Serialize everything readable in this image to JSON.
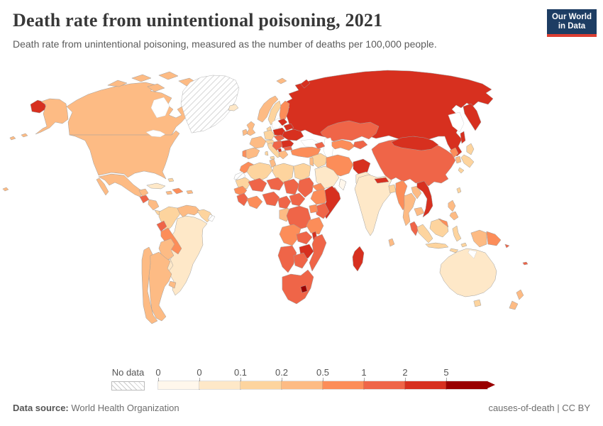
{
  "header": {
    "title": "Death rate from unintentional poisoning, 2021",
    "subtitle": "Death rate from unintentional poisoning, measured as the number of deaths per 100,000 people.",
    "logo": {
      "line1": "Our World",
      "line2": "in Data",
      "bg": "#1d3d63",
      "bar": "#dc3e32"
    }
  },
  "legend": {
    "no_data_label": "No data",
    "ticks": [
      "0",
      "0",
      "0.1",
      "0.2",
      "0.5",
      "1",
      "2",
      "5"
    ],
    "bin_colors": [
      "#fff7ec",
      "#fee8c8",
      "#fdd49e",
      "#fdbb84",
      "#fc8d59",
      "#ef6548",
      "#d7301f",
      "#990000"
    ]
  },
  "footer": {
    "source_label": "Data source:",
    "source_value": "World Health Organization",
    "license": "causes-of-death | CC BY"
  },
  "chart_data": {
    "type": "choropleth-map",
    "title": "Death rate from unintentional poisoning, 2021",
    "year": "2021",
    "unit": "deaths per 100,000 people",
    "bins": [
      {
        "range": "0",
        "color": "#fff7ec"
      },
      {
        "range": "0–0.1",
        "color": "#fee8c8"
      },
      {
        "range": "0.1–0.2",
        "color": "#fdd49e"
      },
      {
        "range": "0.2–0.5",
        "color": "#fdbb84"
      },
      {
        "range": "0.5–1",
        "color": "#fc8d59"
      },
      {
        "range": "1–2",
        "color": "#ef6548"
      },
      {
        "range": "2–5",
        "color": "#d7301f"
      },
      {
        "range": "5+",
        "color": "#990000"
      }
    ],
    "regions": {
      "russia": [
        "Russia",
        "2–5"
      ],
      "russia-west": [
        "Russia (Chukotka)",
        "2–5"
      ],
      "kamchatka": [
        "Russia (Kamchatka)",
        "2–5"
      ],
      "sakhalin": [
        "Russia (Sakhalin)",
        "2–5"
      ],
      "novaya-zemlya": [
        "Russia (Novaya Zemlya)",
        "2–5"
      ],
      "svalbard": [
        "Svalbard",
        "0.2–0.5"
      ],
      "canada": [
        "Canada",
        "0.2–0.5"
      ],
      "canadian-islands": [
        "Canada (Arctic)",
        "0.2–0.5"
      ],
      "usa": [
        "United States",
        "0.2–0.5"
      ],
      "alaska": [
        "United States (Alaska)",
        "0.2–0.5"
      ],
      "aleutians": [
        "United States (Aleutians)",
        "0.2–0.5"
      ],
      "hawaii": [
        "United States (Hawaii)",
        "0.2–0.5"
      ],
      "greenland": [
        "Greenland",
        "no-data"
      ],
      "iceland": [
        "Iceland",
        "0–0.1"
      ],
      "mexico": [
        "Mexico",
        "0.2–0.5"
      ],
      "baja": [
        "Mexico (Baja)",
        "0.2–0.5"
      ],
      "yucatan": [
        "Mexico (Yucatan)",
        "0.2–0.5"
      ],
      "guatemala": [
        "Guatemala",
        "1–2"
      ],
      "honduras-nicaragua": [
        "Honduras/Nicaragua",
        "0.2–0.5"
      ],
      "costa-rica-panama": [
        "Costa Rica/Panama",
        "0.1–0.2"
      ],
      "cuba": [
        "Cuba",
        "0–0.1"
      ],
      "hispaniola": [
        "Haiti/Dominican Rep.",
        "0.5–1"
      ],
      "jamaica": [
        "Jamaica",
        "0.2–0.5"
      ],
      "puerto-rico": [
        "Puerto Rico",
        "0.2–0.5"
      ],
      "bahamas": [
        "Bahamas",
        "0.1–0.2"
      ],
      "colombia": [
        "Colombia",
        "0.1–0.2"
      ],
      "venezuela": [
        "Venezuela",
        "0.2–0.5"
      ],
      "guyanas": [
        "Guyana/Suriname",
        "0.1–0.2"
      ],
      "french-guiana": [
        "French Guiana",
        "no-data"
      ],
      "ecuador": [
        "Ecuador",
        "1–2"
      ],
      "peru": [
        "Peru",
        "0.5–1"
      ],
      "brazil": [
        "Brazil",
        "0–0.1"
      ],
      "bolivia": [
        "Bolivia",
        "0.2–0.5"
      ],
      "paraguay": [
        "Paraguay",
        "0–0.1"
      ],
      "chile": [
        "Chile",
        "0.2–0.5"
      ],
      "argentina": [
        "Argentina",
        "0.2–0.5"
      ],
      "uruguay": [
        "Uruguay",
        "0.2–0.5"
      ],
      "uk": [
        "United Kingdom",
        "0.2–0.5"
      ],
      "ireland": [
        "Ireland",
        "0.2–0.5"
      ],
      "norway": [
        "Norway",
        "0.2–0.5"
      ],
      "sweden": [
        "Sweden",
        "0.1–0.2"
      ],
      "finland": [
        "Finland",
        "0.5–1"
      ],
      "denmark": [
        "Denmark",
        "0.1–0.2"
      ],
      "germany": [
        "Germany",
        "0.1–0.2"
      ],
      "france": [
        "France",
        "0.2–0.5"
      ],
      "iberia": [
        "Spain",
        "0.2–0.5"
      ],
      "portugal": [
        "Portugal",
        "0.5–1"
      ],
      "italy": [
        "Italy",
        "0.1–0.2"
      ],
      "alpine": [
        "Switzerland/Austria",
        "0.1–0.2"
      ],
      "czech-slovakia-hungary": [
        "Czechia/Slovakia/Hungary",
        "1–2"
      ],
      "poland": [
        "Poland",
        "2–5"
      ],
      "baltics": [
        "Baltic states",
        "2–5"
      ],
      "belarus": [
        "Belarus",
        "2–5"
      ],
      "ukraine": [
        "Ukraine",
        "2–5"
      ],
      "romania": [
        "Romania",
        "2–5"
      ],
      "bulgaria": [
        "Bulgaria",
        "1–2"
      ],
      "balkans": [
        "Western Balkans",
        "1–2"
      ],
      "albania-nmk": [
        "Albania/N. Macedonia",
        "2–5"
      ],
      "greece": [
        "Greece",
        "0.2–0.5"
      ],
      "turkey": [
        "Turkey",
        "0.5–1"
      ],
      "caucasus": [
        "Caucasus",
        "1–2"
      ],
      "syria-iraq": [
        "Iraq/Syria",
        "0.1–0.2"
      ],
      "levant": [
        "Levant",
        "0.2–0.5"
      ],
      "saudi": [
        "Saudi Arabia",
        "0–0.1"
      ],
      "yemen": [
        "Yemen",
        "1–2"
      ],
      "oman": [
        "Oman",
        "0"
      ],
      "iran": [
        "Iran",
        "0.5–1"
      ],
      "afghanistan": [
        "Afghanistan",
        "2–5"
      ],
      "pakistan": [
        "Pakistan",
        "0–0.1"
      ],
      "india": [
        "India",
        "0–0.1"
      ],
      "nepal": [
        "Nepal",
        "2–5"
      ],
      "bangladesh": [
        "Bangladesh",
        "0.1–0.2"
      ],
      "sri-lanka": [
        "Sri Lanka",
        "0.2–0.5"
      ],
      "myanmar": [
        "Myanmar",
        "0.5–1"
      ],
      "thailand": [
        "Thailand",
        "0.2–0.5"
      ],
      "laos": [
        "Laos",
        "0.2–0.5"
      ],
      "vietnam": [
        "Vietnam",
        "2–5"
      ],
      "cambodia": [
        "Cambodia",
        "0.2–0.5"
      ],
      "malaysia": [
        "Malaysia",
        "1–2"
      ],
      "malaysia-borneo": [
        "Malaysia (Borneo)",
        "0.5–1"
      ],
      "kazakhstan": [
        "Kazakhstan",
        "1–2"
      ],
      "uzbek-turkmen": [
        "Uzbekistan/Turkmenistan",
        "0.5–1"
      ],
      "kyrgyz-tajik": [
        "Kyrgyzstan/Tajikistan",
        "1–2"
      ],
      "mongolia": [
        "Mongolia",
        "2–5"
      ],
      "china": [
        "China",
        "1–2"
      ],
      "north-korea": [
        "North Korea",
        "0.5–1"
      ],
      "south-korea": [
        "South Korea",
        "0.2–0.5"
      ],
      "japan": [
        "Japan",
        "0.1–0.2"
      ],
      "taiwan": [
        "Taiwan",
        "0.1–0.2"
      ],
      "philippines": [
        "Philippines",
        "0.2–0.5"
      ],
      "indonesia-sumatra": [
        "Indonesia",
        "0.1–0.2"
      ],
      "indonesia-java": [
        "Indonesia",
        "0.1–0.2"
      ],
      "indonesia-borneo": [
        "Indonesia",
        "0.1–0.2"
      ],
      "indonesia-sulawesi": [
        "Indonesia",
        "0.1–0.2"
      ],
      "indonesia-timor": [
        "Indonesia",
        "0.1–0.2"
      ],
      "west-new-guinea": [
        "Indonesia (Papua)",
        "0.2–0.5"
      ],
      "png": [
        "Papua New Guinea",
        "0.5–1"
      ],
      "solomon": [
        "Solomon Islands",
        "1–2"
      ],
      "fiji": [
        "Fiji",
        "1–2"
      ],
      "australia": [
        "Australia",
        "0–0.1"
      ],
      "tasmania": [
        "Australia (Tasmania)",
        "0.1–0.2"
      ],
      "new-zealand-n": [
        "New Zealand",
        "0.2–0.5"
      ],
      "new-zealand-s": [
        "New Zealand",
        "0.2–0.5"
      ],
      "morocco": [
        "Morocco",
        "0.5–1"
      ],
      "western-sahara": [
        "Western Sahara",
        "no-data"
      ],
      "algeria": [
        "Algeria",
        "0.1–0.2"
      ],
      "tunisia": [
        "Tunisia",
        "0.2–0.5"
      ],
      "libya": [
        "Libya",
        "0.1–0.2"
      ],
      "egypt": [
        "Egypt",
        "0.1–0.2"
      ],
      "mauritania": [
        "Mauritania",
        "0.1–0.2"
      ],
      "mali": [
        "Mali",
        "1–2"
      ],
      "niger": [
        "Niger",
        "1–2"
      ],
      "chad": [
        "Chad",
        "1–2"
      ],
      "sudan": [
        "Sudan",
        "1–2"
      ],
      "eritrea-djibouti": [
        "Eritrea/Djibouti",
        "0.5–1"
      ],
      "senegal-gambia": [
        "Senegal/Gambia",
        "0.5–1"
      ],
      "guinea-sl": [
        "Guinea/Sierra Leone",
        "1–2"
      ],
      "ivory-ghana": [
        "Côte d'Ivoire/Ghana",
        "0.5–1"
      ],
      "nigeria-benin": [
        "Nigeria/Benin",
        "1–2"
      ],
      "cameroon": [
        "Cameroon",
        "1–2"
      ],
      "car": [
        "Central African Rep.",
        "1–2"
      ],
      "ethiopia": [
        "Ethiopia",
        "0.5–1"
      ],
      "somalia": [
        "Somalia",
        "2–5"
      ],
      "kenya": [
        "Kenya",
        "1–2"
      ],
      "uganda": [
        "Uganda",
        "0.5–1"
      ],
      "gabon-congo": [
        "Gabon/Congo",
        "0.2–0.5"
      ],
      "drc": [
        "DR Congo",
        "1–2"
      ],
      "tanzania": [
        "Tanzania",
        "0.5–1"
      ],
      "angola": [
        "Angola",
        "0.5–1"
      ],
      "zambia": [
        "Zambia",
        "1–2"
      ],
      "malawi": [
        "Malawi",
        "2–5"
      ],
      "mozambique": [
        "Mozambique",
        "1–2"
      ],
      "zimbabwe": [
        "Zimbabwe",
        "2–5"
      ],
      "namibia": [
        "Namibia",
        "1–2"
      ],
      "botswana": [
        "Botswana",
        "1–2"
      ],
      "south-africa": [
        "South Africa",
        "1–2"
      ],
      "lesotho": [
        "Lesotho",
        "5+"
      ],
      "madagascar": [
        "Madagascar",
        "2–5"
      ]
    }
  }
}
